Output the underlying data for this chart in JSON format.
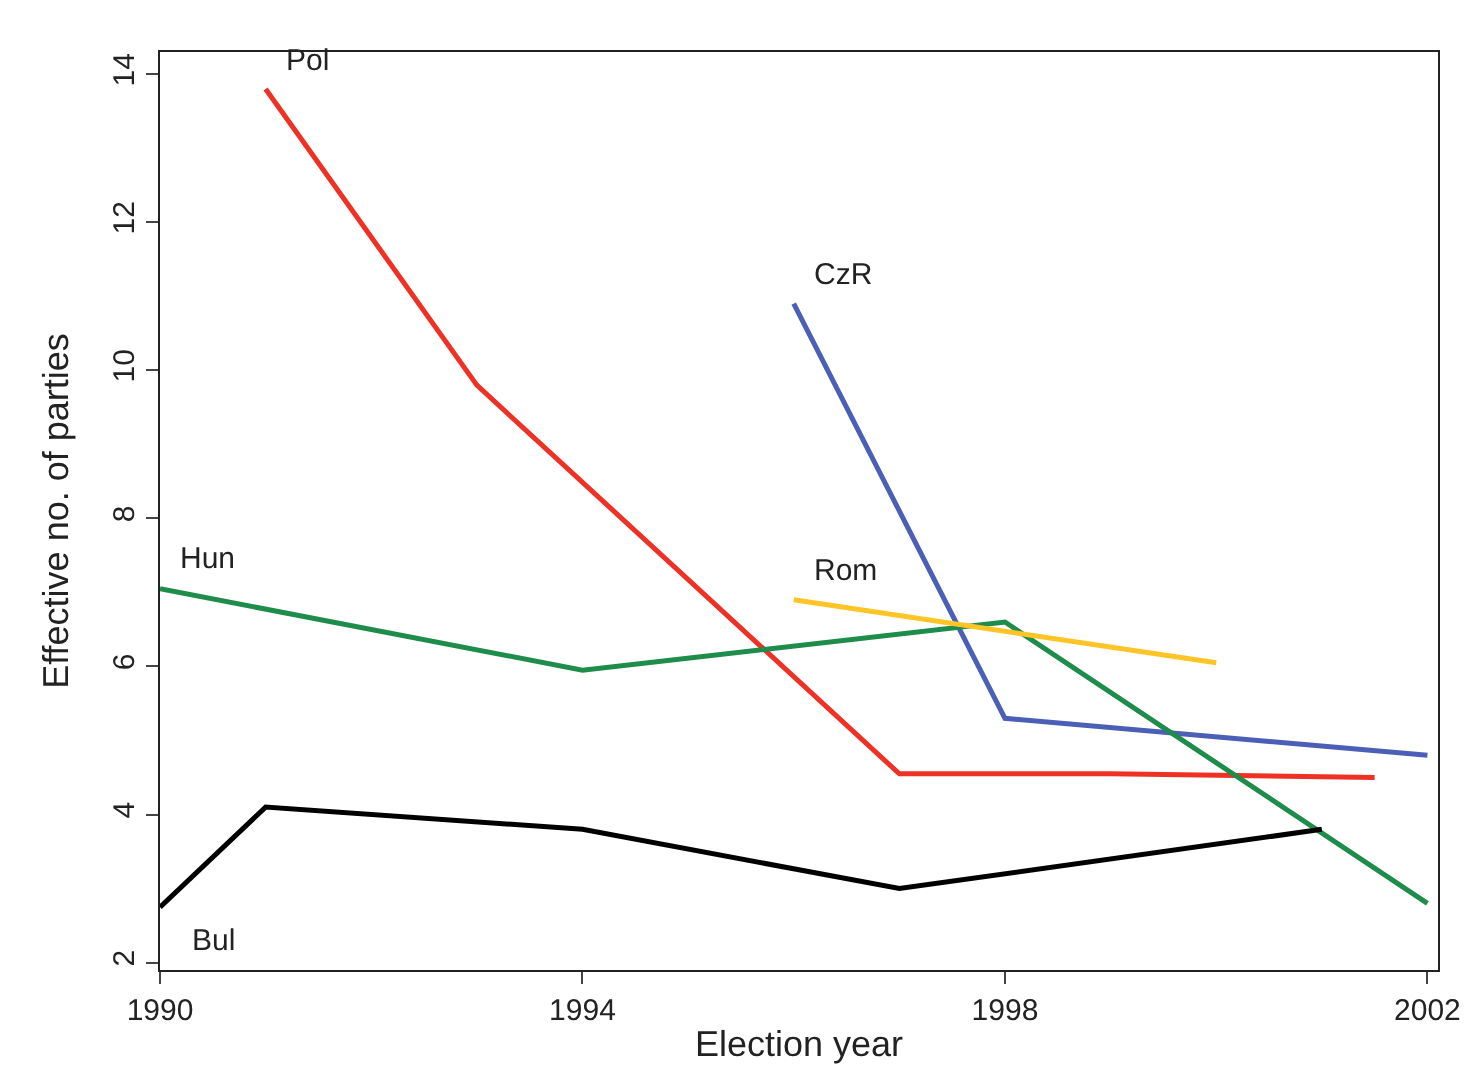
{
  "chart_data": {
    "type": "line",
    "xlabel": "Election year",
    "ylabel": "Effective no. of parties",
    "xlim": [
      1990,
      2002.1
    ],
    "xticks": [
      1990,
      1994,
      1998,
      2002
    ],
    "ylim": [
      1.9,
      14.3
    ],
    "yticks": [
      2,
      4,
      6,
      8,
      10,
      12,
      14
    ],
    "grid": false,
    "legend": false,
    "marker": "none",
    "line_style": "solid",
    "series": [
      {
        "name": "Pol",
        "color": "#ee3124",
        "x": [
          1991,
          1993,
          1997,
          1999,
          2001.5
        ],
        "values": [
          13.8,
          9.8,
          4.55,
          4.55,
          4.5
        ]
      },
      {
        "name": "CzR",
        "color": "#4a5fb5",
        "x": [
          1996,
          1998,
          2002
        ],
        "values": [
          10.9,
          5.3,
          4.8
        ]
      },
      {
        "name": "Hun",
        "color": "#1e8c4a",
        "x": [
          1990,
          1994,
          1998,
          2002
        ],
        "values": [
          7.05,
          5.95,
          6.6,
          2.8
        ]
      },
      {
        "name": "Rom",
        "color": "#ffc425",
        "x": [
          1996,
          2000
        ],
        "values": [
          6.9,
          6.05
        ]
      },
      {
        "name": "Bul",
        "color": "#000000",
        "x": [
          1990,
          1991,
          1994,
          1997,
          2001
        ],
        "values": [
          2.75,
          4.1,
          3.8,
          3.0,
          3.8
        ]
      }
    ]
  }
}
